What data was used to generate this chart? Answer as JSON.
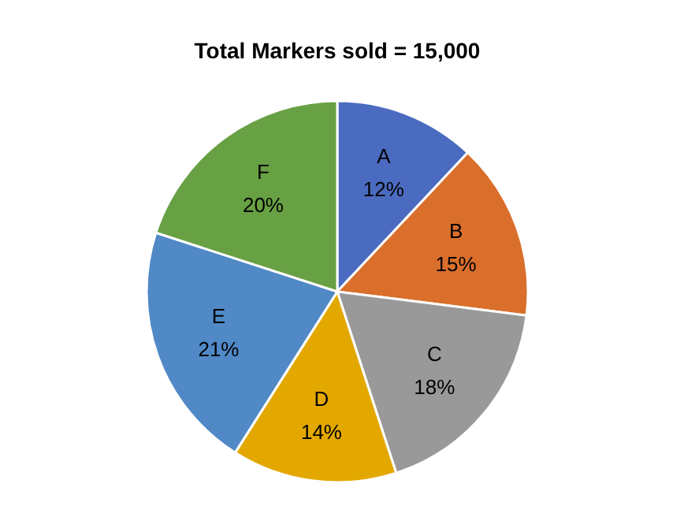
{
  "chart_data": {
    "type": "pie",
    "title": "Total Markers sold = 15,000",
    "categories": [
      "A",
      "B",
      "C",
      "D",
      "E",
      "F"
    ],
    "values": [
      12,
      15,
      18,
      14,
      21,
      20
    ],
    "value_labels": [
      "12%",
      "15%",
      "18%",
      "14%",
      "21%",
      "20%"
    ],
    "colors": [
      "#4a6bbf",
      "#d96f2b",
      "#999999",
      "#e3a800",
      "#5089c6",
      "#68a044"
    ],
    "legend": false
  }
}
